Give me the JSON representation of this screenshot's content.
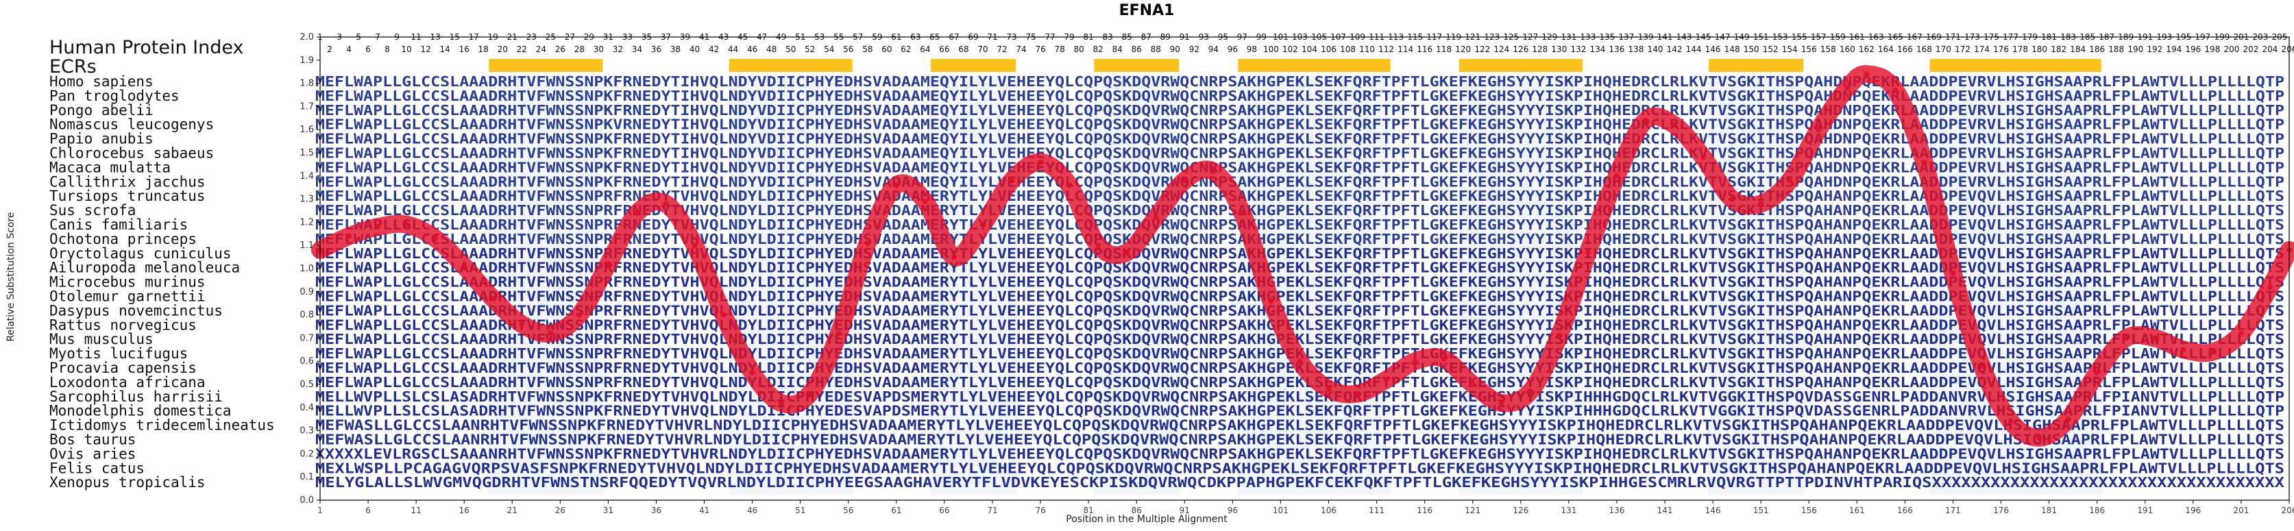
{
  "chart_data": {
    "type": "line",
    "title": "EFNA1",
    "xlabel": "Position in the Multiple Alignment",
    "ylabel": "Relative Substitution Score",
    "ylim": [
      0.0,
      2.0
    ],
    "xlim": [
      1,
      206
    ],
    "yticks": [
      "0.0",
      "0.1",
      "0.2",
      "0.3",
      "0.4",
      "0.5",
      "0.6",
      "0.7",
      "0.8",
      "0.9",
      "1.0",
      "1.1",
      "1.2",
      "1.3",
      "1.4",
      "1.5",
      "1.6",
      "1.7",
      "1.8",
      "1.9",
      "2.0"
    ],
    "xticks": [
      "1",
      "6",
      "11",
      "16",
      "21",
      "26",
      "31",
      "36",
      "41",
      "46",
      "51",
      "56",
      "61",
      "66",
      "71",
      "76",
      "81",
      "86",
      "91",
      "96",
      "101",
      "106",
      "111",
      "116",
      "121",
      "126",
      "131",
      "136",
      "141",
      "146",
      "151",
      "156",
      "161",
      "166",
      "171",
      "176",
      "181",
      "186",
      "191",
      "196",
      "201",
      "206"
    ],
    "labels": {
      "reference": "Human Protein Index",
      "ecrs": "ECRs"
    },
    "ecr_regions": [
      [
        19,
        30
      ],
      [
        44,
        56
      ],
      [
        65,
        73
      ],
      [
        82,
        90
      ],
      [
        97,
        112
      ],
      [
        120,
        132
      ],
      [
        146,
        155
      ],
      [
        169,
        186
      ]
    ],
    "series": [
      {
        "color": "#e0102a",
        "x": [
          1,
          4,
          7,
          10,
          13,
          16,
          19,
          22,
          25,
          28,
          31,
          34,
          37,
          40,
          43,
          46,
          49,
          52,
          55,
          58,
          61,
          64,
          67,
          70,
          73,
          76,
          79,
          82,
          85,
          88,
          91,
          94,
          97,
          100,
          103,
          106,
          109,
          112,
          115,
          118,
          121,
          124,
          127,
          130,
          133,
          136,
          139,
          142,
          145,
          148,
          151,
          154,
          157,
          160,
          162,
          165,
          168,
          171,
          174,
          177,
          180,
          183,
          186,
          189,
          192,
          195,
          198,
          201,
          204,
          206
        ],
        "y": [
          1.08,
          1.14,
          1.18,
          1.19,
          1.13,
          1.01,
          0.87,
          0.76,
          0.72,
          0.8,
          1.02,
          1.24,
          1.28,
          1.1,
          0.8,
          0.55,
          0.42,
          0.46,
          0.72,
          1.11,
          1.36,
          1.29,
          1.05,
          1.19,
          1.38,
          1.46,
          1.36,
          1.1,
          1.07,
          1.22,
          1.38,
          1.42,
          1.24,
          0.86,
          0.6,
          0.48,
          0.46,
          0.52,
          0.6,
          0.61,
          0.5,
          0.42,
          0.47,
          0.71,
          1.07,
          1.4,
          1.64,
          1.62,
          1.48,
          1.3,
          1.28,
          1.38,
          1.6,
          1.78,
          1.84,
          1.77,
          1.46,
          0.98,
          0.58,
          0.34,
          0.27,
          0.35,
          0.55,
          0.7,
          0.7,
          0.65,
          0.64,
          0.72,
          0.92,
          1.08
        ]
      }
    ]
  },
  "species": [
    "Homo sapiens",
    "Pan troglodytes",
    "Pongo abelii",
    "Nomascus leucogenys",
    "Papio anubis",
    "Chlorocebus sabaeus",
    "Macaca mulatta",
    "Callithrix jacchus",
    "Tursiops truncatus",
    "Sus scrofa",
    "Canis familiaris",
    "Ochotona princeps",
    "Oryctolagus cuniculus",
    "Ailuropoda melanoleuca",
    "Microcebus murinus",
    "Otolemur garnettii",
    "Dasypus novemcinctus",
    "Rattus norvegicus",
    "Mus musculus",
    "Myotis lucifugus",
    "Procavia capensis",
    "Loxodonta africana",
    "Sarcophilus harrisii",
    "Monodelphis domestica",
    "Ictidomys tridecemlineatus",
    "Bos taurus",
    "Ovis aries",
    "Felis catus",
    "Xenopus tropicalis"
  ],
  "sequences": [
    "MEFLWAPLLGLCCSLAAADRHTVFWNSSNPKFRNEDYTIHVQLNDYVDIICPHYEDHSVADAAMEQYILYLVEHEEYQLCQPQSKDQVRWQCNRPSAKHGPEKLSEKFQRFTPFTLGKEFKEGHSYYYISKPIHQHEDRCLRLKVTVSGKITHSPQAHDNPQEKRLAADDPEVRVLHSIGHSAAPRLFPLAWTVLLLPLLLLQTP",
    "MEFLWAPLLGLCCSLAAADRHTVFWNSSNPKFRNEDYTIHVQLNDYVDIICPHYEDHSVADAAMEQYILYLVEHEEYQLCQPQSKDQVRWQCNRPSAKHGPEKLSEKFQRFTPFTLGKEFKEGHSYYYISKPIHQHEDRCLRLKVTVSGKITHSPQAHDNPQEKRLAADDPEVRVLHSIGHSAAPRLFPLAWTVLLLPLLLLQTP",
    "MEFLWAPLLGLCCSLAAADRHTVFWNSSNPKFRNEDYTIHVQLNDYVDIICPHYEDHSVADAAMEQYILYLVEHEEYQLCQPQSKDQVRWQCNRPSAKHGPEKLSEKFQRFTPFTLGKEFKEGHSYYYISKPIHQHEDRCLRLKVTVSGKITHSPQAHDNPQEKRLAADDPEVRVLHSIGHSAAPRLFPLAWTVLLLPLLLLQTP",
    "MEFLWAPLLGLCCSLAAADRHTVFWNSSNPKVRNEDYTIHVQLNDYVDIICPHYEDHSVADAAMEQYILYLVEHEEYQLCQPQSKDQVRWQCNRPSAKHGPEKLSEKFQRFTPFTLGKEFKEGHSYYYISKPIHQHEDRCLRLKVTVSGKITHSPQAHDNPQEKRLAADDPEVRVLHSIGHSAAPRLFPLAWTVLLLPLLLLQTP",
    "MEFLWAPLLGLCCSLAAADRHTVFWNSSNPKFRNEDYTIHVQLNDYVDIICPHYEDHSVADAAMEQYILYLVEHEEYQLCQPQSKDQVRWQCNRPSAKHGPEKLSEKFQRFTPFTLGKEFKEGHSYYYISKPIHQHEDRCLRLKVTVSGKITHSPQAHDNPQEKRLAADDPEVRVLHSIGHSAAPRLFPLAWTVLLLPLLLLQTP",
    "MEFLWAPLLGLCCSLAAADRHTVFWNSSNPKFRNEDYTIHVQLNDYVDIICPHYEDHSVADAAMEQYILYLVEHEEYQLCQPQSKDQVRWQCNRPSAKHGPEKLSEKFQRFTPFTLGKEFKEGHSYYYISKPIHQHEDRCLRLKVTVSGKITHSPQAHDNPQEKRLAADDPEVRVLHSIGHSAAPRLFPLAWTVLLLPLLLLQTP",
    "MEFLWAPLLGLCCSLAAADRHTVFWNSSNPKFRNEDYTIHVQLNDYVDIICPHYEDHSVADAAMEQYILYLVEHEEYQLCQPQSKDQVRWQCNRPSAKHGPEKLSEKFQRFTPFTLGKEFKEGHSYYYISKPIHQHEDRCLRLKVTVSGKITHSPQAHDNPQEKRLAADDPEVRVLHSIGHSAAPRLFPLAWTVLLLPLLLLQTP",
    "MEFLWAPLLGLCCSLAAADRHTVFWNSSNPKFRNEDYTIHVQLNDYVDIICPHYEDHSVADAAMEQYILYLVEHEEYQLCQPQSKDQVRWQCNRPSAKHGPEKLSEKFQRFTPFTLGKEFKEGHSYYYISKPIHQHEDRCLRLKVTVSGKITHSPQAHDNPQEKRLAADDPEVRVLHSIGHSAAPRLFPLAWTVLLLPLLLLQTP",
    "MEFLWAPLLGLCCSLAAADRHTVFWNSSNPRFRNEDYTVHVQLNDYLDIICPHYEDHSVADAAMERYTLYLVEHEEYQLCQPQSKDQVRWQCNRPSAKHGPEKLSEKFQRFTPFTLGKEFKEGHSYYYISKPIHQHEDRCLRLKVTVSGKITHSPQAHANPQEKRLAADDPEVQVLHSIGHSAAPRLFPLAWTVLLLPLLLLQTS",
    "MEFLWAPLLGLCCSLAAADRHTVFWNSSNPRFRNEDYTVHVQLNDYLDIICPHYEDHSVADAAMERYTLYLVEHEEYQLCQPQSKDQVRWQCNRPSAKHGPEKLSEKFQRFTPFTLGKEFKEGHSYYYISKPIHQHEDRCLRLKVTVSGKITHSPQAHANPQEKRLAADDPEVQVLHSIGHSAAPRLFPLAWTVLLLPLLLLQTS",
    "MEFLWAPLLGLCCSLAAADRHTVFWNSSNPRFRNEDYTVHVQLNDYLDIICPHYEDHSVADAAMERYTLYLVEHEEYQLCQPQSKDQVRWQCNRPSAKHGPEKLSEKFQRFTPFTLGKEFKEGHSYYYISKPIHQHEDRCLRLKVTVSGKITHSPQAHANPQEKRLAADDPEVQVLHSIGHSAAPRLFPLAWTVLLLPLLLLQTS",
    "MEFLWAPLLGLCCSLAAADRHTVFWNSSNPRFRNEDYTVHVQLNDYLDIICPHYEDHSVADAAMERYTLYLVEHEEYQLCQPQSKDQVRWQCNRPSAKHGPEKLSEKFQRFTPFTLGKEFKEGHSYYYISKPIHQHEDRCLRLKVTVSGKITHSPQAHANPQEKRLAADDPEVQVLHSIGHSAAPRLFPLAWTVLLLPLLLLQTS",
    "MEFLWAPLLGLCCSLAAADRHTVFWNSSNPRFRNEDYTVHVQLSDYLDIICPHYEDHSVADAAMERYTLYLVEHEEYQLCQPQSKDQVRWQCNRPSAKHGPEKLSEKFQRFTPFTLGKEFKEGHSYYYISKPIHQHEDRCLRLKVTVSGKITHSPQAHANPQEKRLAADDPEVQVLHSIGHSAAPRLFPLAWTVLLLPLLLLQTS",
    "MEFLWAPLLGLCCSLAAADRHTVFWNSSNPRFRNEDYTVHVQLNDYLDIICPHYEDHSVADAAMERYTLYLVEHEEYQLCQPQSKDQVRWQCNRPSAKHGPEKLSEKFQRFTPFTLGKEFKEGHSYYYISKPIHQHEDRCLRLKVTVSGKITHSPQAHANPQEKRLAADDPEVQVLHSIGHSAAPRLFPLAWTVLLLPLLLLQTS",
    "MEFLWAPLLGLCCSLAAADRHTVFWNSSNPRFRNEDYTVHVQLNDYLDIICPHYEDHSVADAAMERYTLYLVEHEEYQLCQPQSKDQVRWQCNRPSAKHGPEKLSEKFQRFTPFTLGKEFKEGHSYYYISKPIHQHEDRCLRLKVTVSGKITHSPQAHANPQEKRLAADDPEVQVLHSIGHSAAPRLFPLAWTVLLLPLLLLQTS",
    "MEFLWAPLLGLCCSLAAADRHTVFWNSSNPRFRNEDYTVHVQLNDYLDIICPHYEDHSVADAAMERYTLYLVEHEEYQLCQPQSKDQVRWQCNRPSAKHGPEKLSEKFQRFTPFTLGKEFKEGHSYYYISKPIHQHEDRCLRLKVTVSGKITHSPQAHANPQEKRLAADDPEVQVLHSIGHSAAPRLFPLAWTVLLLPLLLLQTS",
    "MEFLWAPLLGLCCSLAAADRHTVFWNSSNPRFRNEDYTVHVQLNDYLDIICPHYEDHSVADAAMERYTLYLVEHEEYQLCQPQSKDQVRWQCNRPSAKHGPEKLSEKFQRFTPFTLGKEFKEGHSYYYISKPIHQHEDRCLRLKVTVSGKITHSPQAHANPQEKRLAADDPEVQVLHSIGHSAAPRLFPLAWTVLLLPLLLLQTS",
    "MEFLWAPLLGLCCSLAAADRHTVFWNSSNPRFRNEDYTVHVQLNDYLDIICPHYEDHSVADAAMERYTLYLVEHEEYQLCQPQSKDQVRWQCNRPSAKHGPEKLSEKFQRFTPFTLGKEFKEGHSYYYISKPIHQHEDRCLRLKVTVSGKITHSPQAHANPQEKRLAADDPEVQVLHSIGHSAAPRLFPLAWTVLLLPLLLLQTS",
    "MEFLWAPLLGLCCSLAAADRHTVFWNSSNPRFRNEDYTVHVQLNDYLDIICPHYEDHSVADAAMERYTLYLVEHEEYQLCQPQSKDQVRWQCNRPSAKHGPEKLSEKFQRFTPFTLGKEFKEGHSYYYISKPIHQHEDRCLRLKVTVSGKITHSPQAHANPQEKRLAADDPEVQVLHSIGHSAAPRLFPLAWTVLLLPLLLLQTS",
    "MEFLWAPLLGLCCSLAAADRHTVFWNSSNPRFRNEDYTVHVQLNDYLDIICPHYEDHSVADAAMERYTLYLVEHEEYQLCQPQSKDQVRWQCNRPSAKHGPEKLSEKFQRFTPFTLGKEFKEGHSYYYISKPIHQHEDRCLRLKVTVSGKITHSPQAHANPQEKRLAADDPEVQVLHSIGHSAAPRLFPLAWTVLLLPLLLLQTS",
    "MEFLWAPLLGLCCSLAAADRHTVFWNSSNPRFRNEDYTVHVQLNDYLDIICPHYEDHSVADAAMERYTLYLVEHEEYQLCQPQSKDQVRWQCNRPSAKHGPEKLSEKFQRFTPFTLGKEFKEGHSYYYISKPIHQHEDRCLRLKVTVSGKITHSPQAHANPQEKRLAADDPEVQVLHSIGHSAAPRLFPLAWTVLLLPLLLLQTS",
    "MEFLWAPLLGLCCSLAAADRHTVFWNSSNPRFRNEDYTVHVQLNDYLDIICPHYEDHSVADAAMERYTLYLVEHEEYQLCQPQSKDQVRWQCNRPSAKHGPEKLSEKFQRFTPFTLGKEFKEGHSYYYISKPIHQHEDRCLRLKVTVSGKITHSPQAHANPQEKRLAADDPEVQVLHSIGHSAAPRLFPLAWTVLLLPLLLLQTS",
    "MELLWVPLLSLCSLASADRHTVFWNSSNPKFRNEDYTVHVQLNDYLDIICPHYEDESVAPDSMERYTLYLVEHEEYQLCQPQSKDQVRWQCNRPSAKHGPEKLSEKFQRFTPFTLGKEFKEGHSYYYISKPIHHHGDQCLRLKVTVGGKITHSPQVDASSGENRLPADDANVRVLHSIGHSAAPRLFPIANVTVLLLPLLLLQTP",
    "MELLWVPLLSLCSLASADRHTVFWNSSNPKFRNEDYTVHVQLNDYLDIICPHYEDESVAPDSMERYTLYLVEHEEYQLCQPQSKDQVRWQCNRPSAKHGPEKLSEKFQRFTPFTLGKEFKEGHSYYYISKPIHHHGDQCLRLKVTVGGKITHSPQVDASSGENRLPADDANVRVLHSIGHSAAPRLFPIANVTVLLLPLLLLQTP",
    "MEFWASLLGLCCSLAANRHTVFWNSSNPKFRNEDYTVHVRLNDYLDIICPHYEDHSVADAAMERYTLYLVEHEEYQLCQPQSKDQVRWQCNRPSAKHGPEKLSEKFQRFTPFTLGKEFKEGHSYYYISKPIHQHEDRCLRLKVTVSGKITHSPQAHANPQEKRLAADDPEVQVLHSIGHSAAPRLFPLAWTVLLLPLLLLQTS",
    "MEFWASLLGLCCSLAANRHTVFWNSSNPKFRNEDYTVHVRLNDYLDIICPHYEDHSVADAAMERYTLYLVEHEEYQLCQPQSKDQVRWQCNRPSAKHGPEKLSEKFQRFTPFTLGKEFKEGHSYYYISKPIHQHEDRCLRLKVTVSGKITHSPQAHANPQEKRLAADDPEVQVLHSIGHSAAPRLFPLAWTVLLLPLLLLQTS",
    "XXXXXLEVLRGSCLSAAANRHTVFWNSSNPKFRNEDYTVHVRLNDYLDIICPHYEDHSVADAAMERYTLYLVEHEEYQLCQPQSKDQVRWQCNRPSAKHGPEKLSEKFQRFTPFTLGKEFKEGHSYYYISKPIHQHEDRCLRLKVTVSGKITHSPQAHANPQEKRLAADDPEVQVLHSIGHSAAPRLFPLAWTVLLLPLLLLQTS",
    "MEXLWSPLLPCAGAGVQRPSVASFSNPKFRNEDYTVHVQLNDYLDIICPHYEDHSVADAAMERYTLYLVEHEEYQLCQPQSKDQVRWQCNRPSAKHGPEKLSEKFQRFTPFTLGKEFKEGHSYYYISKPIHQHEDRCLRLKVTVSGKITHSPQAHANPQEKRLAADDPEVQVLHSIGHSAAPRLFPLAWTVLLLPLLLLQTS",
    "MELYGLALLSLWVGMVQGDRHTVFWNSTNSRFQQEDYTVQVRLNDYLDIICPHYEEGSAAGHAVERYTFLVDVKEYESCKPISKDQVRWQCDKPPAPHGPEKFCEKFQKFTPFTLGKEFKEGHSYYYISKPIHHGESCMRLRVQVRGTTPTTPDINVHTPARIQSXXXXXXXXXXXXXXXXXXXXXXXXXXXXXXXXXXXX"
  ]
}
